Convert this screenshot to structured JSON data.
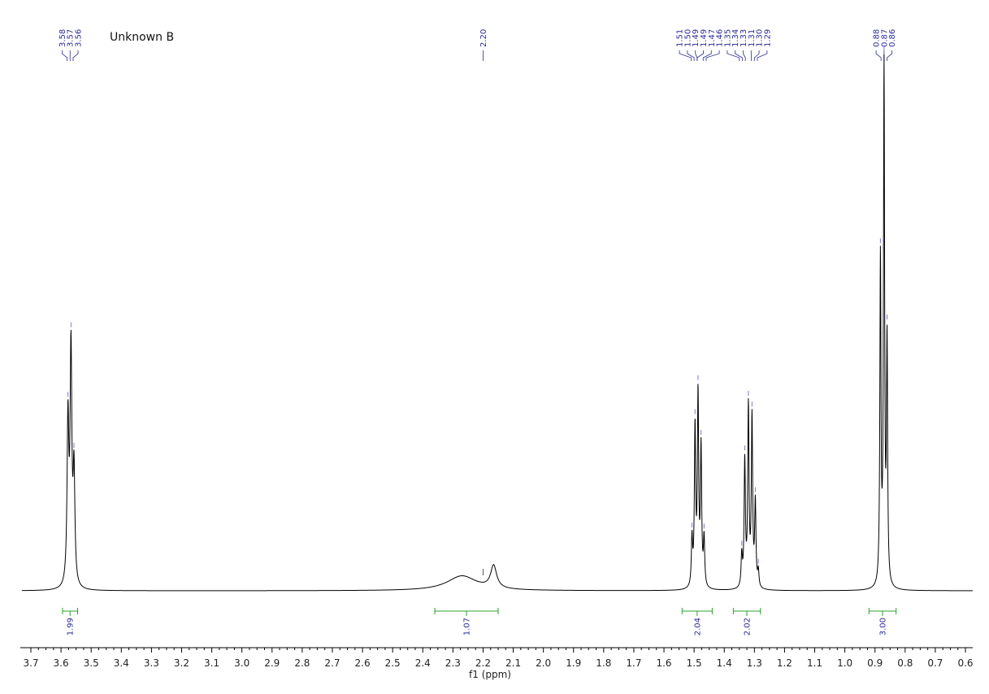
{
  "chart_data": {
    "type": "line",
    "title": "Unknown B",
    "xlabel": "f1 (ppm)",
    "x_reversed": true,
    "xlim": [
      3.73,
      0.58
    ],
    "x_ticks": [
      3.7,
      3.6,
      3.5,
      3.4,
      3.3,
      3.2,
      3.1,
      3.0,
      2.9,
      2.8,
      2.7,
      2.6,
      2.5,
      2.4,
      2.3,
      2.2,
      2.1,
      2.0,
      1.9,
      1.8,
      1.7,
      1.6,
      1.5,
      1.4,
      1.3,
      1.2,
      1.1,
      1.0,
      0.9,
      0.8,
      0.7,
      0.6
    ],
    "x_tick_labels": [
      "3.7",
      "3.6",
      "3.5",
      "3.4",
      "3.3",
      "3.2",
      "3.1",
      "3.0",
      "2.9",
      "2.8",
      "2.7",
      "2.6",
      "2.5",
      "2.4",
      "2.3",
      "2.2",
      "2.1",
      "2.0",
      "1.9",
      "1.8",
      "1.7",
      "1.6",
      "1.5",
      "1.4",
      "1.3",
      "1.2",
      "1.1",
      "1.0",
      "0.9",
      "0.8",
      "0.7",
      "0.6"
    ],
    "line_color": "#000000",
    "peak_label_color": "#2a2a9a",
    "integral_color": "#2ca02c",
    "peak_groups": [
      {
        "labels": [
          "3.58",
          "3.57",
          "3.56"
        ],
        "ppm": [
          3.58,
          3.57,
          3.56
        ]
      },
      {
        "labels": [
          "2.20"
        ],
        "ppm": [
          2.2
        ]
      },
      {
        "labels": [
          "1.51",
          "1.50",
          "1.49",
          "1.49",
          "1.47",
          "1.46",
          "1.35",
          "1.34",
          "1.33",
          "1.31",
          "1.30",
          "1.29"
        ],
        "ppm": [
          1.51,
          1.5,
          1.49,
          1.49,
          1.47,
          1.46,
          1.35,
          1.34,
          1.33,
          1.31,
          1.3,
          1.29
        ]
      },
      {
        "labels": [
          "0.88",
          "0.87",
          "0.86"
        ],
        "ppm": [
          0.88,
          0.87,
          0.86
        ]
      }
    ],
    "peaks": [
      {
        "ppm": 3.577,
        "height": 0.31,
        "width": 0.0035
      },
      {
        "ppm": 3.567,
        "height": 0.44,
        "width": 0.0035
      },
      {
        "ppm": 3.557,
        "height": 0.21,
        "width": 0.0035
      },
      {
        "ppm": 2.165,
        "height": 0.043,
        "width": 0.012
      },
      {
        "ppm": 2.27,
        "height": 0.028,
        "width": 0.06
      },
      {
        "ppm": 1.507,
        "height": 0.09,
        "width": 0.0025
      },
      {
        "ppm": 1.497,
        "height": 0.3,
        "width": 0.0025
      },
      {
        "ppm": 1.487,
        "height": 0.36,
        "width": 0.0025
      },
      {
        "ppm": 1.477,
        "height": 0.26,
        "width": 0.0025
      },
      {
        "ppm": 1.467,
        "height": 0.09,
        "width": 0.0025
      },
      {
        "ppm": 1.342,
        "height": 0.06,
        "width": 0.0025
      },
      {
        "ppm": 1.332,
        "height": 0.24,
        "width": 0.0025
      },
      {
        "ppm": 1.32,
        "height": 0.34,
        "width": 0.0025
      },
      {
        "ppm": 1.308,
        "height": 0.32,
        "width": 0.0025
      },
      {
        "ppm": 1.297,
        "height": 0.16,
        "width": 0.0025
      },
      {
        "ppm": 1.287,
        "height": 0.03,
        "width": 0.0025
      },
      {
        "ppm": 0.882,
        "height": 0.62,
        "width": 0.0022
      },
      {
        "ppm": 0.87,
        "height": 0.98,
        "width": 0.0022
      },
      {
        "ppm": 0.86,
        "height": 0.46,
        "width": 0.0022
      }
    ],
    "integrals": [
      {
        "value": "1.99",
        "from": 3.595,
        "to": 3.545
      },
      {
        "value": "1.07",
        "from": 2.36,
        "to": 2.15
      },
      {
        "value": "2.04",
        "from": 1.54,
        "to": 1.44
      },
      {
        "value": "2.02",
        "from": 1.37,
        "to": 1.28
      },
      {
        "value": "3.00",
        "from": 0.92,
        "to": 0.83
      }
    ]
  }
}
